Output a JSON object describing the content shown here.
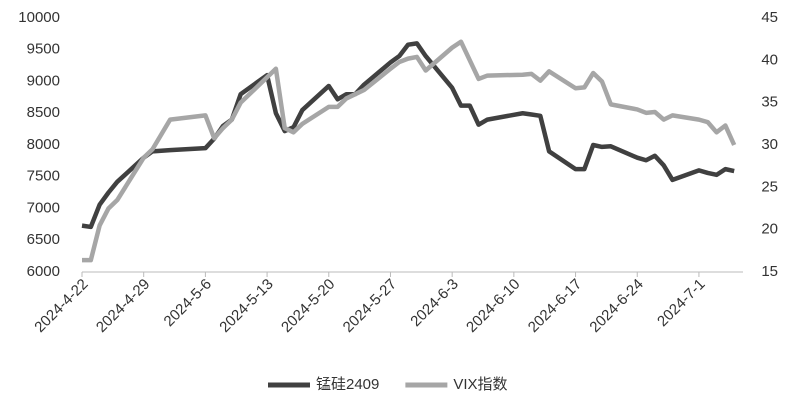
{
  "chart_data": {
    "type": "line",
    "x": [
      "2024-4-22",
      "2024-4-23",
      "2024-4-24",
      "2024-4-25",
      "2024-4-26",
      "2024-4-29",
      "2024-4-30",
      "2024-5-2",
      "2024-5-6",
      "2024-5-7",
      "2024-5-8",
      "2024-5-9",
      "2024-5-10",
      "2024-5-13",
      "2024-5-14",
      "2024-5-15",
      "2024-5-16",
      "2024-5-17",
      "2024-5-20",
      "2024-5-21",
      "2024-5-22",
      "2024-5-23",
      "2024-5-24",
      "2024-5-27",
      "2024-5-28",
      "2024-5-29",
      "2024-5-30",
      "2024-5-31",
      "2024-6-3",
      "2024-6-4",
      "2024-6-5",
      "2024-6-6",
      "2024-6-7",
      "2024-6-11",
      "2024-6-12",
      "2024-6-13",
      "2024-6-14",
      "2024-6-17",
      "2024-6-18",
      "2024-6-19",
      "2024-6-20",
      "2024-6-21",
      "2024-6-24",
      "2024-6-25",
      "2024-6-26",
      "2024-6-27",
      "2024-6-28",
      "2024-7-1",
      "2024-7-2",
      "2024-7-3",
      "2024-7-4",
      "2024-7-5"
    ],
    "series": [
      {
        "name": "锰硅2409",
        "color": "#404040",
        "values": [
          6730,
          6710,
          7060,
          7250,
          7420,
          7800,
          7900,
          7920,
          7950,
          8100,
          8300,
          8400,
          8800,
          9100,
          8500,
          8220,
          8280,
          8550,
          8930,
          8720,
          8800,
          8800,
          8950,
          9300,
          9400,
          9580,
          9600,
          9400,
          8900,
          8620,
          8620,
          8320,
          8400,
          8500,
          8480,
          8460,
          7900,
          7620,
          7620,
          8000,
          7970,
          7980,
          7800,
          7760,
          7830,
          7680,
          7450,
          7600,
          7560,
          7530,
          7620,
          7590
        ]
      },
      {
        "name": "VIX指数",
        "color": "#a6a6a6",
        "axis": "y2",
        "values": [
          16.4,
          16.4,
          20.5,
          22.5,
          23.5,
          28.5,
          29.5,
          33.0,
          33.5,
          30.8,
          32.0,
          33.0,
          35.0,
          38.0,
          39.0,
          32.0,
          31.5,
          32.5,
          34.5,
          34.5,
          35.5,
          36.0,
          36.5,
          39.0,
          39.8,
          40.2,
          40.4,
          38.8,
          41.5,
          42.2,
          40.0,
          37.8,
          38.2,
          38.3,
          38.4,
          37.6,
          38.7,
          36.7,
          36.8,
          38.5,
          37.5,
          34.8,
          34.2,
          33.8,
          33.9,
          33.0,
          33.5,
          33.0,
          32.7,
          31.5,
          32.3,
          30.0
        ]
      }
    ],
    "xlim": [
      "2024-4-22",
      "2024-7-6"
    ],
    "xticks": [
      "2024-4-22",
      "2024-4-29",
      "2024-5-6",
      "2024-5-13",
      "2024-5-20",
      "2024-5-27",
      "2024-6-3",
      "2024-6-10",
      "2024-6-17",
      "2024-6-24",
      "2024-7-1"
    ],
    "ylim": [
      6000,
      10000
    ],
    "yticks": [
      6000,
      6500,
      7000,
      7500,
      8000,
      8500,
      9000,
      9500,
      10000
    ],
    "y2lim": [
      15,
      45
    ],
    "y2ticks": [
      15,
      20,
      25,
      30,
      35,
      40,
      45
    ],
    "grid": false,
    "legend": "bottom"
  }
}
